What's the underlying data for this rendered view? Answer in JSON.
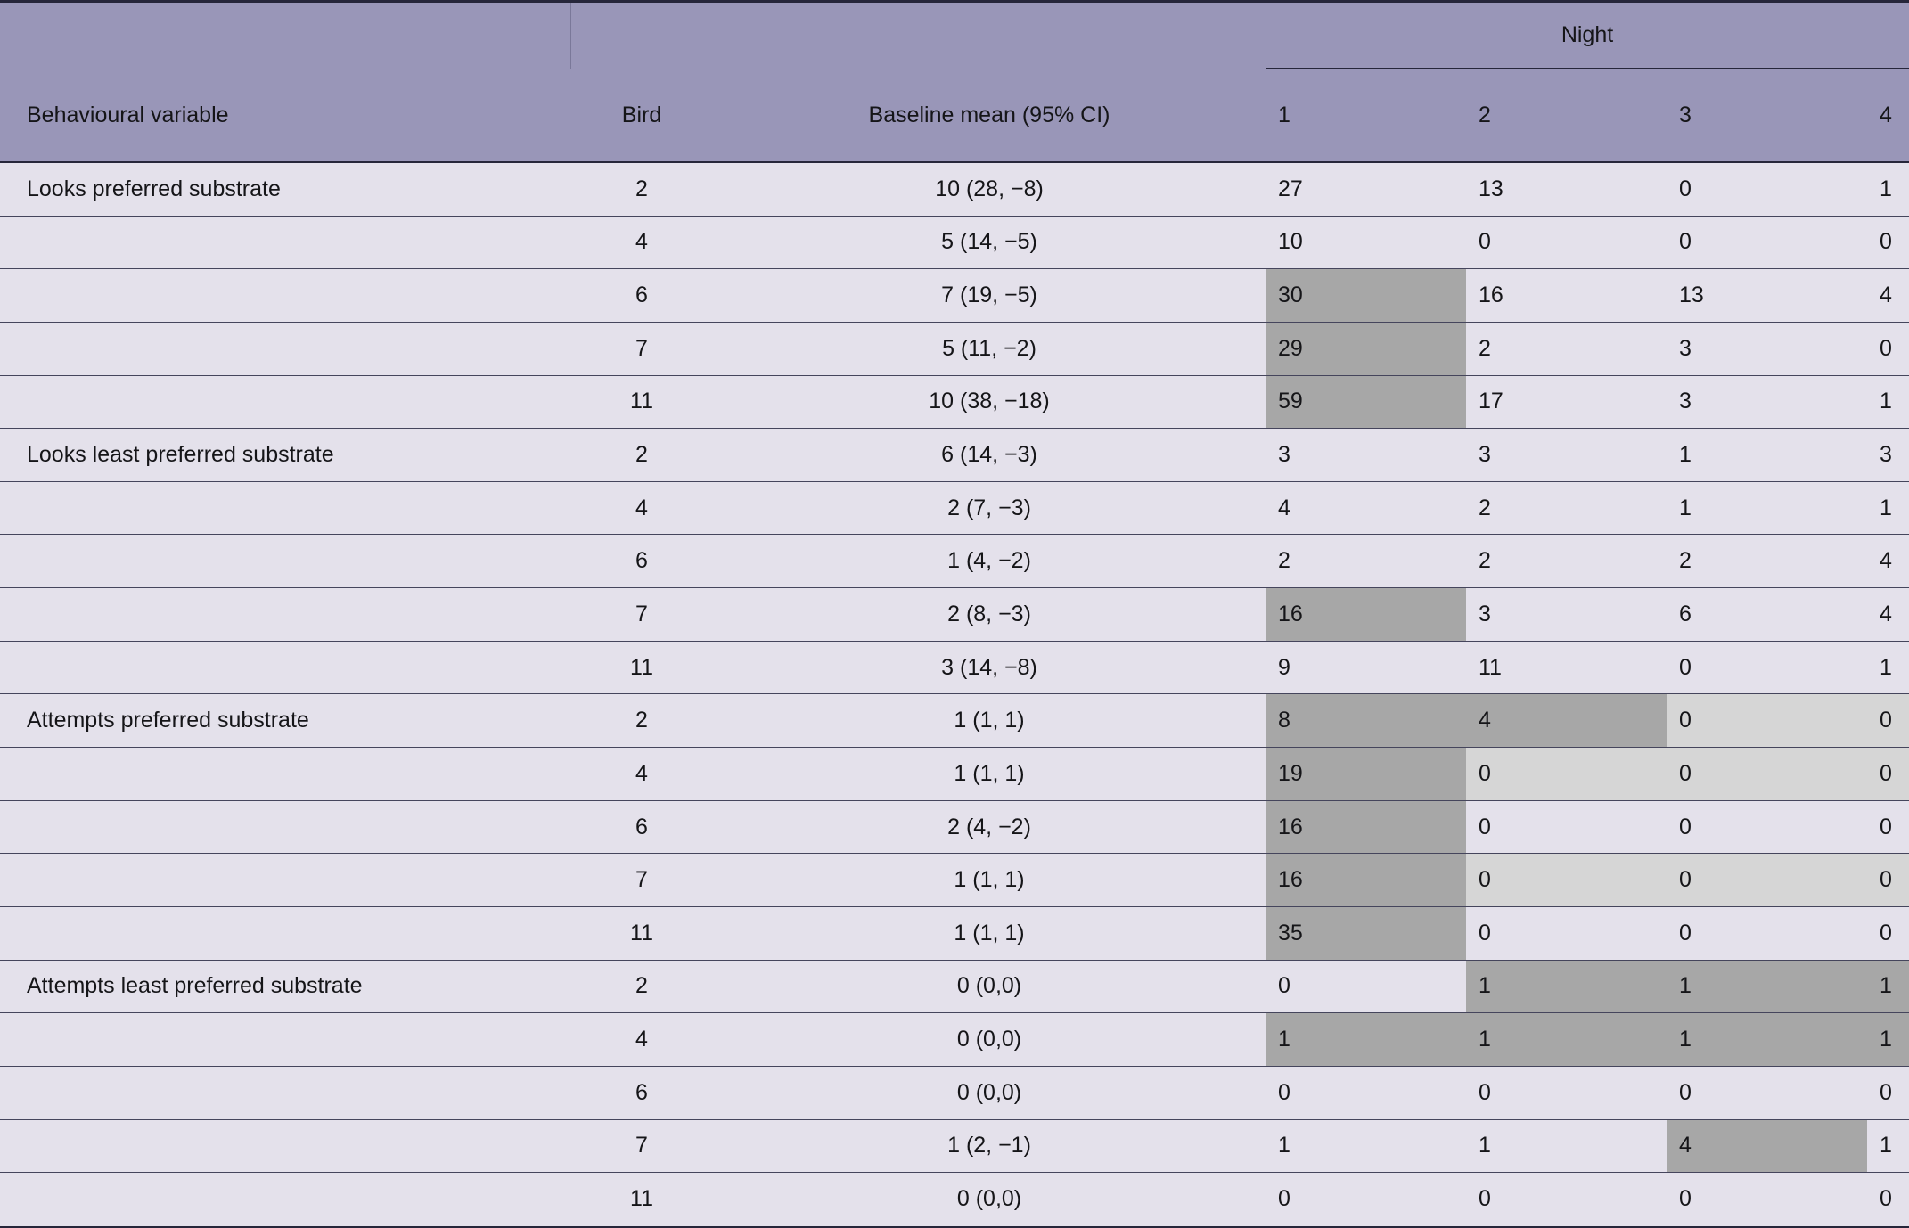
{
  "table": {
    "header": {
      "night_label": "Night",
      "col_variable": "Behavioural variable",
      "col_bird": "Bird",
      "col_baseline": "Baseline mean (95% CI)",
      "night_cols": [
        "1",
        "2",
        "3",
        "4"
      ]
    },
    "colors": {
      "header_bg": "#9996b8",
      "body_bg": "#e4e1eb",
      "dark_cell": "#a7a7a7",
      "light_cell": "#d6d6d6",
      "rule": "#45455c",
      "border": "#26263a"
    },
    "rows": [
      {
        "variable": "Looks preferred substrate",
        "bird": "2",
        "baseline": "10 (28, −8)",
        "nights": [
          "27",
          "13",
          "0",
          "1"
        ],
        "shading": [
          "none",
          "none",
          "none",
          "none"
        ]
      },
      {
        "variable": "",
        "bird": "4",
        "baseline": "5 (14, −5)",
        "nights": [
          "10",
          "0",
          "0",
          "0"
        ],
        "shading": [
          "none",
          "none",
          "none",
          "none"
        ]
      },
      {
        "variable": "",
        "bird": "6",
        "baseline": "7 (19, −5)",
        "nights": [
          "30",
          "16",
          "13",
          "4"
        ],
        "shading": [
          "dark",
          "none",
          "none",
          "none"
        ]
      },
      {
        "variable": "",
        "bird": "7",
        "baseline": "5 (11, −2)",
        "nights": [
          "29",
          "2",
          "3",
          "0"
        ],
        "shading": [
          "dark",
          "none",
          "none",
          "none"
        ]
      },
      {
        "variable": "",
        "bird": "11",
        "baseline": "10 (38, −18)",
        "nights": [
          "59",
          "17",
          "3",
          "1"
        ],
        "shading": [
          "dark",
          "none",
          "none",
          "none"
        ]
      },
      {
        "variable": "Looks least preferred substrate",
        "bird": "2",
        "baseline": "6 (14, −3)",
        "nights": [
          "3",
          "3",
          "1",
          "3"
        ],
        "shading": [
          "none",
          "none",
          "none",
          "none"
        ]
      },
      {
        "variable": "",
        "bird": "4",
        "baseline": "2 (7, −3)",
        "nights": [
          "4",
          "2",
          "1",
          "1"
        ],
        "shading": [
          "none",
          "none",
          "none",
          "none"
        ]
      },
      {
        "variable": "",
        "bird": "6",
        "baseline": "1 (4, −2)",
        "nights": [
          "2",
          "2",
          "2",
          "4"
        ],
        "shading": [
          "none",
          "none",
          "none",
          "none"
        ]
      },
      {
        "variable": "",
        "bird": "7",
        "baseline": "2 (8, −3)",
        "nights": [
          "16",
          "3",
          "6",
          "4"
        ],
        "shading": [
          "dark",
          "none",
          "none",
          "none"
        ]
      },
      {
        "variable": "",
        "bird": "11",
        "baseline": "3 (14, −8)",
        "nights": [
          "9",
          "11",
          "0",
          "1"
        ],
        "shading": [
          "none",
          "none",
          "none",
          "none"
        ]
      },
      {
        "variable": "Attempts preferred substrate",
        "bird": "2",
        "baseline": "1 (1, 1)",
        "nights": [
          "8",
          "4",
          "0",
          "0"
        ],
        "shading": [
          "dark",
          "dark",
          "light",
          "light"
        ]
      },
      {
        "variable": "",
        "bird": "4",
        "baseline": "1 (1, 1)",
        "nights": [
          "19",
          "0",
          "0",
          "0"
        ],
        "shading": [
          "dark",
          "light",
          "light",
          "light"
        ]
      },
      {
        "variable": "",
        "bird": "6",
        "baseline": "2 (4, −2)",
        "nights": [
          "16",
          "0",
          "0",
          "0"
        ],
        "shading": [
          "dark",
          "none",
          "none",
          "none"
        ]
      },
      {
        "variable": "",
        "bird": "7",
        "baseline": "1 (1, 1)",
        "nights": [
          "16",
          "0",
          "0",
          "0"
        ],
        "shading": [
          "dark",
          "light",
          "light",
          "light"
        ]
      },
      {
        "variable": "",
        "bird": "11",
        "baseline": "1 (1, 1)",
        "nights": [
          "35",
          "0",
          "0",
          "0"
        ],
        "shading": [
          "dark",
          "none",
          "none",
          "none"
        ]
      },
      {
        "variable": "Attempts least preferred substrate",
        "bird": "2",
        "baseline": "0 (0,0)",
        "nights": [
          "0",
          "1",
          "1",
          "1"
        ],
        "shading": [
          "none",
          "dark",
          "dark",
          "dark"
        ]
      },
      {
        "variable": "",
        "bird": "4",
        "baseline": "0 (0,0)",
        "nights": [
          "1",
          "1",
          "1",
          "1"
        ],
        "shading": [
          "dark",
          "dark",
          "dark",
          "dark"
        ]
      },
      {
        "variable": "",
        "bird": "6",
        "baseline": "0 (0,0)",
        "nights": [
          "0",
          "0",
          "0",
          "0"
        ],
        "shading": [
          "none",
          "none",
          "none",
          "none"
        ]
      },
      {
        "variable": "",
        "bird": "7",
        "baseline": "1 (2, −1)",
        "nights": [
          "1",
          "1",
          "4",
          "1"
        ],
        "shading": [
          "none",
          "none",
          "dark",
          "none"
        ]
      },
      {
        "variable": "",
        "bird": "11",
        "baseline": "0 (0,0)",
        "nights": [
          "0",
          "0",
          "0",
          "0"
        ],
        "shading": [
          "none",
          "none",
          "none",
          "none"
        ]
      }
    ]
  }
}
